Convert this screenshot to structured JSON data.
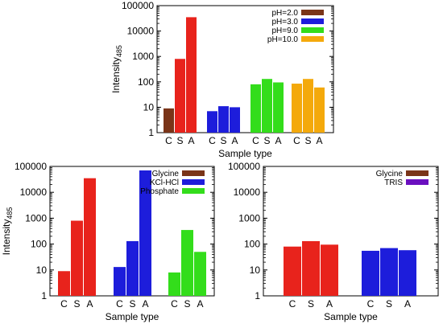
{
  "chart_data": [
    {
      "type": "bar",
      "ylabel": "Intensity",
      "ylabel_sub": "485",
      "xlabel": "Sample type",
      "y_scale": "log",
      "ylim": [
        1,
        100000
      ],
      "y_ticks": [
        "1",
        "10",
        "100",
        "1000",
        "10000",
        "100000"
      ],
      "legend_position": "top-right",
      "groups": [
        {
          "series": "pH=2.0",
          "color": "#7a3418",
          "categories": [
            "C",
            "S",
            "A"
          ],
          "values": [
            9,
            null,
            null
          ]
        },
        {
          "series": "pH=2.0 (red)",
          "color": "#e8231c",
          "categories": [
            "C",
            "S",
            "A"
          ],
          "values": [
            null,
            800,
            35000
          ]
        },
        {
          "series": "pH=3.0",
          "color": "#1d1ddb",
          "categories": [
            "C",
            "S",
            "A"
          ],
          "values": [
            7,
            11,
            10
          ]
        },
        {
          "series": "pH=9.0",
          "color": "#33dd1b",
          "categories": [
            "C",
            "S",
            "A"
          ],
          "values": [
            80,
            130,
            95
          ]
        },
        {
          "series": "pH=10.0",
          "color": "#f4a90b",
          "categories": [
            "C",
            "S",
            "A"
          ],
          "values": [
            85,
            130,
            60
          ]
        }
      ],
      "legend": [
        {
          "name": "pH=2.0",
          "color": "#7a3418"
        },
        {
          "name": "pH=3.0",
          "color": "#1d1ddb"
        },
        {
          "name": "pH=9.0",
          "color": "#33dd1b"
        },
        {
          "name": "pH=10.0",
          "color": "#f4a90b"
        }
      ],
      "group_labels": [
        [
          "C",
          "S",
          "A"
        ],
        [],
        [],
        [
          "C",
          "S",
          "A"
        ],
        [
          "C",
          "S",
          "A"
        ]
      ],
      "tick_groups": [
        [
          "C",
          "S",
          "A"
        ],
        [
          "C",
          "S",
          "A"
        ],
        [
          "C",
          "S",
          "A"
        ],
        [
          "C",
          "S",
          "A"
        ]
      ]
    },
    {
      "type": "bar",
      "ylabel": "Intensity",
      "ylabel_sub": "485",
      "xlabel": "Sample type",
      "y_scale": "log",
      "ylim": [
        1,
        100000
      ],
      "y_ticks": [
        "1",
        "10",
        "100",
        "1000",
        "10000",
        "100000"
      ],
      "legend_position": "top-right",
      "groups": [
        {
          "series": "Glycine",
          "color": "#e8231c",
          "categories": [
            "C",
            "S",
            "A"
          ],
          "values": [
            9,
            800,
            35000
          ]
        },
        {
          "series": "KCl-HCl",
          "color": "#1d1ddb",
          "categories": [
            "C",
            "S",
            "A"
          ],
          "values": [
            13,
            130,
            70000
          ]
        },
        {
          "series": "Phosphate",
          "color": "#33dd1b",
          "categories": [
            "C",
            "S",
            "A"
          ],
          "values": [
            8,
            350,
            50
          ]
        }
      ],
      "legend": [
        {
          "name": "Glycine",
          "color": "#7a3418"
        },
        {
          "name": "KCl-HCl",
          "color": "#1d1ddb"
        },
        {
          "name": "Phosphate",
          "color": "#33dd1b"
        }
      ],
      "tick_groups": [
        [
          "C",
          "S",
          "A"
        ],
        [
          "C",
          "S",
          "A"
        ],
        [
          "C",
          "S",
          "A"
        ]
      ]
    },
    {
      "type": "bar",
      "ylabel": "",
      "xlabel": "Sample type",
      "y_scale": "log",
      "ylim": [
        1,
        100000
      ],
      "y_ticks": [
        "1",
        "10",
        "100",
        "1000",
        "10000",
        "100000"
      ],
      "legend_position": "top-right",
      "groups": [
        {
          "series": "Glycine",
          "color": "#e8231c",
          "categories": [
            "C",
            "S",
            "A"
          ],
          "values": [
            80,
            130,
            95
          ]
        },
        {
          "series": "TRIS",
          "color": "#1d1ddb",
          "categories": [
            "C",
            "S",
            "A"
          ],
          "values": [
            55,
            70,
            58
          ]
        }
      ],
      "legend": [
        {
          "name": "Glycine",
          "color": "#7a3418"
        },
        {
          "name": "TRIS",
          "color": "#6a0fbf"
        }
      ],
      "tick_groups": [
        [
          "C",
          "S",
          "A"
        ],
        [
          "C",
          "S",
          "A"
        ]
      ]
    }
  ]
}
